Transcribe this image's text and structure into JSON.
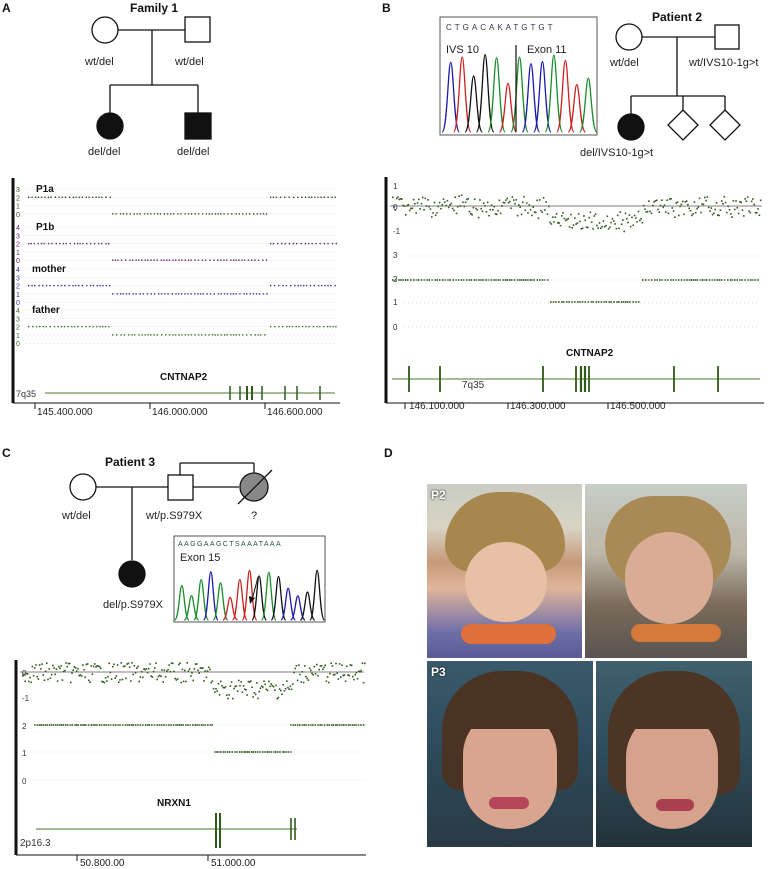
{
  "panels": {
    "A": {
      "letter": "A",
      "title": "Family 1",
      "father": "wt/del",
      "mother": "wt/del",
      "child1": "del/del",
      "child2": "del/del",
      "tracks": [
        {
          "name": "P1a",
          "ticks": [
            "3",
            "2",
            "1",
            "0"
          ],
          "color": "#2e4d1f"
        },
        {
          "name": "P1b",
          "ticks": [
            "4",
            "3",
            "2",
            "1",
            "0"
          ],
          "color": "#6a1b75"
        },
        {
          "name": "mother",
          "ticks": [
            "4",
            "3",
            "2",
            "1",
            "0"
          ],
          "color": "#3030b0"
        },
        {
          "name": "father",
          "ticks": [
            "4",
            "3",
            "2",
            "1",
            "0"
          ],
          "color": "#3d6b2a"
        }
      ],
      "gene": "CNTNAP2",
      "band": "7q35",
      "axis_ticks": [
        "145.400.000",
        "146.000.000",
        "146.600.000"
      ]
    },
    "B": {
      "letter": "B",
      "title": "Patient 2",
      "seq": "CTGACAKATGTGT",
      "seq_left": "IVS 10",
      "seq_right": "Exon 11",
      "mother": "wt/del",
      "father": "wt/IVS10-1g>t",
      "child": "del/IVS10-1g>t",
      "log_ticks": [
        "1",
        "0",
        "-1"
      ],
      "cn_ticks": [
        "3",
        "2",
        "1",
        "0"
      ],
      "gene": "CNTNAP2",
      "band": "7q35",
      "axis_ticks": [
        "146.100.000",
        "146.300.000",
        "146.500.000"
      ]
    },
    "C": {
      "letter": "C",
      "title": "Patient 3",
      "mother": "wt/del",
      "father": "wt/p.S979X",
      "other": "?",
      "child": "del/p.S979X",
      "seq": "AAGGAAGCTSAAATAAA",
      "exon": "Exon 15",
      "log_ticks": [
        "0",
        "-1"
      ],
      "cn_ticks": [
        "2",
        "1",
        "0"
      ],
      "gene": "NRXN1",
      "band": "2p16.3",
      "axis_ticks": [
        "50.800.00",
        "51.000.00"
      ]
    },
    "D": {
      "letter": "D",
      "p2": "P2",
      "p3": "P3"
    }
  },
  "colors": {
    "trace_green": "#2f5a1a",
    "axis": "#222222",
    "gene_line": "#4a7a2a"
  }
}
